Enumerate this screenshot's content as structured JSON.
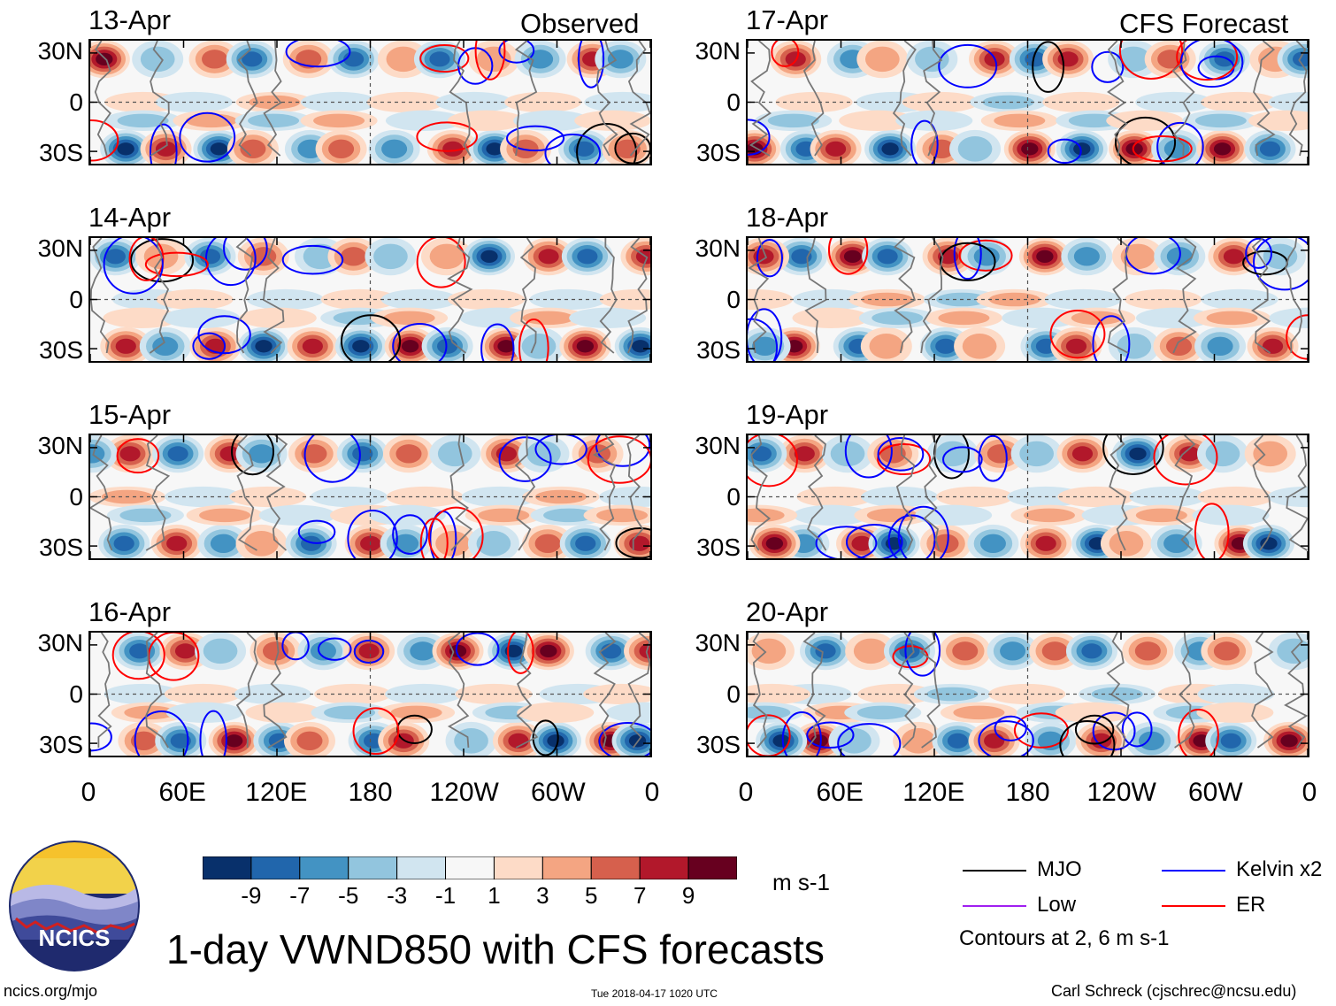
{
  "chart_data": {
    "type": "heatmap",
    "title": "1-day VWND850 with CFS forecasts",
    "variable": "VWND850",
    "units": "m s-1",
    "x_axis": {
      "ticks": [
        "0",
        "60E",
        "120E",
        "180",
        "120W",
        "60W",
        "0"
      ],
      "range_deg": [
        0,
        360
      ]
    },
    "y_axis": {
      "ticks": [
        "30N",
        "0",
        "30S"
      ],
      "range_deg": [
        -40,
        40
      ]
    },
    "observed_panels": {
      "header": "Observed",
      "dates": [
        "13-Apr",
        "14-Apr",
        "15-Apr",
        "16-Apr"
      ]
    },
    "forecast_panels": {
      "header": "CFS Forecast",
      "dates": [
        "17-Apr",
        "18-Apr",
        "19-Apr",
        "20-Apr"
      ]
    },
    "colorbar": {
      "labels": [
        "-9",
        "-7",
        "-5",
        "-3",
        "-1",
        "1",
        "3",
        "5",
        "7",
        "9"
      ],
      "colors": [
        "#08306b",
        "#2166ac",
        "#4393c3",
        "#92c5de",
        "#d1e5f0",
        "#f7f7f7",
        "#fddbc7",
        "#f4a582",
        "#d6604d",
        "#b2182b",
        "#67001f"
      ],
      "units_label": "m s-1"
    },
    "contour_legend": [
      {
        "label": "MJO",
        "color": "#000000"
      },
      {
        "label": "Kelvin x2",
        "color": "#0000ff"
      },
      {
        "label": "Low",
        "color": "#a020f0"
      },
      {
        "label": "ER",
        "color": "#ff0000"
      }
    ],
    "contour_note": "Contours at 2, 6 m s-1"
  },
  "footer": {
    "logo_text": "NCICS",
    "website": "ncics.org/mjo",
    "timestamp": "Tue 2018-04-17 1020 UTC",
    "author": "Carl Schreck (cjschrec@ncsu.edu)"
  }
}
